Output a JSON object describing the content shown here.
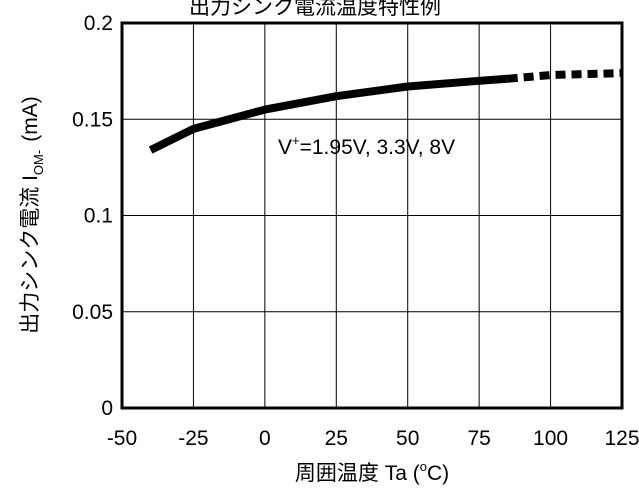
{
  "chart_data": {
    "type": "line",
    "title": "出力シンク電流温度特性例",
    "xlabel": "周囲温度 Ta (",
    "xlabel_unit_sup": "o",
    "xlabel_unit": "C)",
    "ylabel": "出力シンク電流 I",
    "ylabel_sub": "OM-",
    "ylabel_unit": "(mA)",
    "xlim": [
      -50,
      125
    ],
    "ylim": [
      0,
      0.2
    ],
    "x_ticks": [
      -50,
      -25,
      0,
      25,
      50,
      75,
      100,
      125
    ],
    "x_tick_labels": [
      "-50",
      "-25",
      "0",
      "25",
      "50",
      "75",
      "100",
      "125"
    ],
    "y_ticks": [
      0,
      0.05,
      0.1,
      0.15,
      0.2
    ],
    "y_tick_labels": [
      "0",
      "0.05",
      "0.1",
      "0.15",
      "0.2"
    ],
    "grid": true,
    "annotation": {
      "prefix": "V",
      "sup": "+",
      "text": "=1.95V, 3.3V, 8V",
      "x": 2,
      "y": 0.137
    },
    "series": [
      {
        "style": "solid",
        "x": [
          -40,
          -25,
          0,
          25,
          50,
          75,
          85
        ],
        "y": [
          0.134,
          0.145,
          0.155,
          0.162,
          0.167,
          0.17,
          0.171
        ]
      },
      {
        "style": "dashed",
        "x": [
          85,
          100,
          125
        ],
        "y": [
          0.171,
          0.173,
          0.174
        ]
      }
    ]
  }
}
